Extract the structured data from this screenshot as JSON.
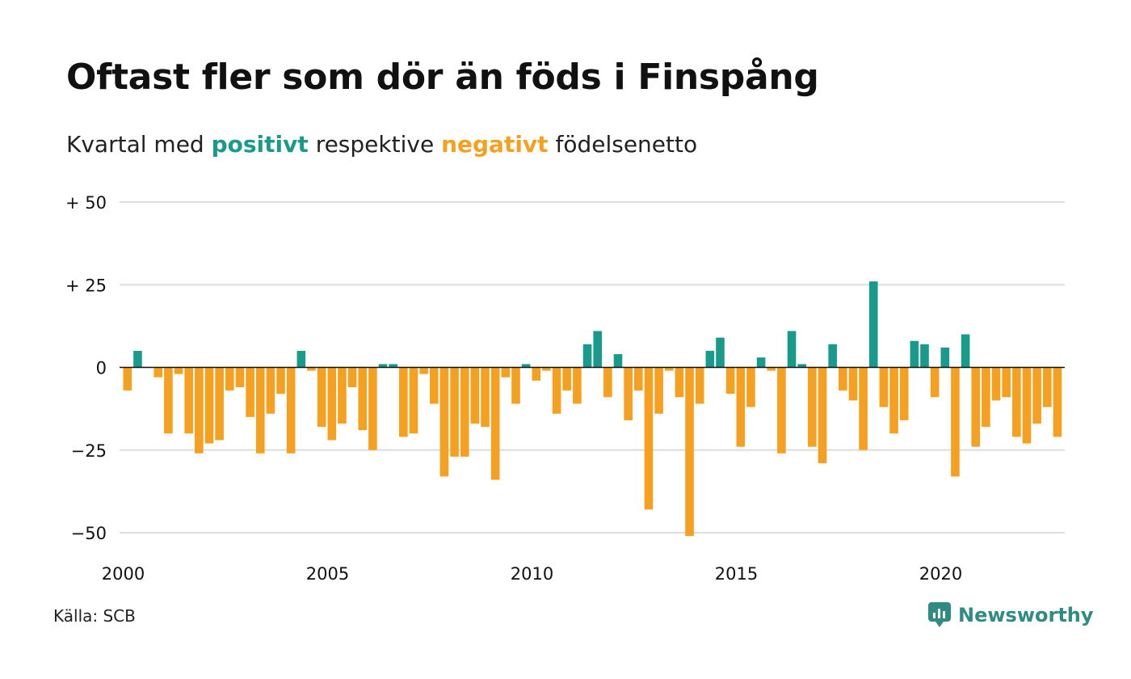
{
  "title": "Oftast fler som dör än föds i Finspång",
  "subtitle": {
    "prefix": "Kvartal med",
    "positive_word": "positivt",
    "middle": "respektive",
    "negative_word": "negativt",
    "suffix": "födelsenetto"
  },
  "source": "Källa: SCB",
  "logo": {
    "text": "Newsworthy",
    "icon": "newsworthy-chart-icon"
  },
  "colors": {
    "positive": "#1a9a8a",
    "negative": "#f5a020",
    "grid": "#dddddd",
    "zero_line": "#111111",
    "logo": "#2f8c82"
  },
  "chart_data": {
    "type": "bar",
    "x_unit": "quarter",
    "start_year": 2000,
    "ylim": [
      -55,
      50
    ],
    "xlim": [
      2000,
      2023
    ],
    "y_ticks": [
      {
        "value": 50,
        "label": "+ 50"
      },
      {
        "value": 25,
        "label": "+ 25"
      },
      {
        "value": 0,
        "label": "0"
      },
      {
        "value": -25,
        "label": "−25"
      },
      {
        "value": -50,
        "label": "−50"
      }
    ],
    "x_ticks": [
      {
        "value": 2000,
        "label": "2000"
      },
      {
        "value": 2005,
        "label": "2005"
      },
      {
        "value": 2010,
        "label": "2010"
      },
      {
        "value": 2015,
        "label": "2015"
      },
      {
        "value": 2020,
        "label": "2020"
      }
    ],
    "grid": true,
    "values": [
      -7,
      5,
      0,
      -3,
      -20,
      -2,
      -20,
      -26,
      -23,
      -22,
      -7,
      -6,
      -15,
      -26,
      -14,
      -8,
      -26,
      5,
      -1,
      -18,
      -22,
      -17,
      -6,
      -19,
      -25,
      1,
      1,
      -21,
      -20,
      -2,
      -11,
      -33,
      -27,
      -27,
      -17,
      -18,
      -34,
      -3,
      -11,
      1,
      -4,
      -1,
      -14,
      -7,
      -11,
      7,
      11,
      -9,
      4,
      -16,
      -7,
      -43,
      -14,
      -1,
      -9,
      -51,
      -11,
      5,
      9,
      -8,
      -24,
      -12,
      3,
      -1,
      -26,
      11,
      1,
      -24,
      -29,
      7,
      -7,
      -10,
      -25,
      26,
      -12,
      -20,
      -16,
      8,
      7,
      -9,
      6,
      -33,
      10,
      -24,
      -18,
      -10,
      -9,
      -21,
      -23,
      -17,
      -12,
      -21
    ]
  }
}
